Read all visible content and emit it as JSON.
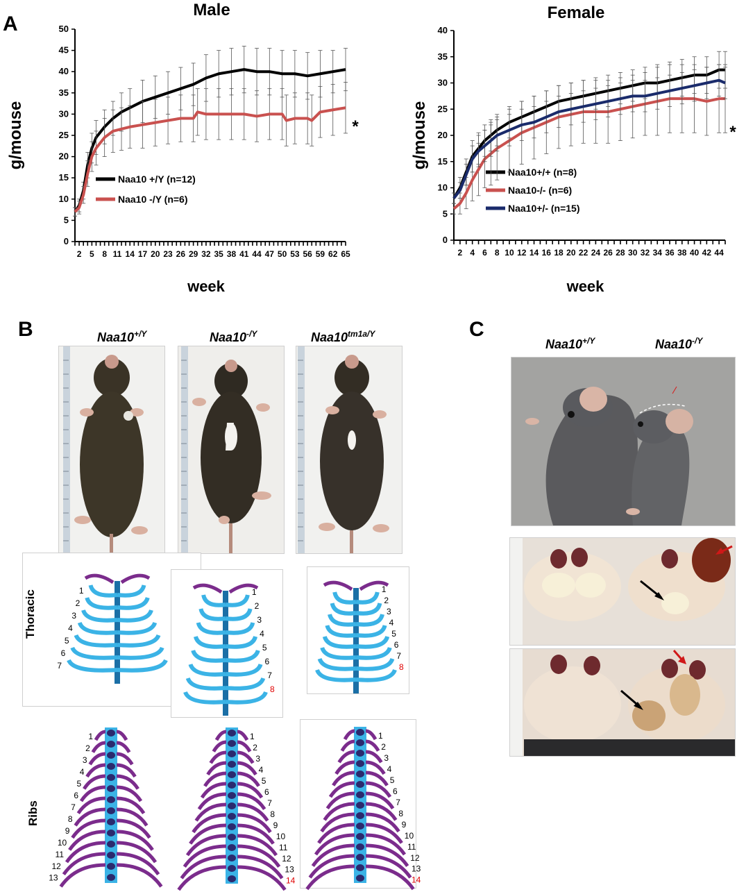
{
  "panels": {
    "a": "A",
    "b": "B",
    "c": "C"
  },
  "colors": {
    "wt": "#000000",
    "ko": "#c9514f",
    "het": "#1a2b6b",
    "bone_blue": "#3bb3e6",
    "bone_purple": "#7b2c8c",
    "red_number": "#e00000"
  },
  "chart_data": [
    {
      "type": "line",
      "title": "Male",
      "xlabel": "week",
      "ylabel": "g/mouse",
      "ylim": [
        0,
        50
      ],
      "yticks": [
        0,
        5,
        10,
        15,
        20,
        25,
        30,
        35,
        40,
        45,
        50
      ],
      "xlim": [
        1,
        65
      ],
      "xticks": [
        "2",
        "5",
        "8",
        "11",
        "14",
        "17",
        "20",
        "23",
        "26",
        "29",
        "32",
        "35",
        "38",
        "41",
        "44",
        "47",
        "50",
        "53",
        "56",
        "59",
        "62",
        "65"
      ],
      "annotation": "*",
      "series": [
        {
          "name": "Naa10 +/Y (n=12)",
          "color": "#000000",
          "x": [
            1,
            2,
            3,
            4,
            5,
            6,
            8,
            10,
            12,
            14,
            17,
            20,
            23,
            26,
            29,
            32,
            35,
            38,
            41,
            44,
            47,
            50,
            53,
            56,
            59,
            62,
            65
          ],
          "y": [
            7,
            8.5,
            12,
            18,
            22,
            24.5,
            27,
            29,
            30.5,
            31.5,
            33,
            34,
            35,
            36,
            37,
            38.5,
            39.5,
            40,
            40.5,
            40,
            40,
            39.5,
            39.5,
            39,
            39.5,
            40,
            40.5
          ],
          "err": [
            1,
            1.5,
            2,
            3,
            3.5,
            4,
            4,
            4,
            4.5,
            4.5,
            5,
            5,
            5,
            5,
            5,
            5.5,
            5.5,
            5.5,
            5.5,
            5.5,
            5.5,
            5.5,
            5.5,
            5.5,
            5.5,
            5,
            5
          ]
        },
        {
          "name": "Naa10 -/Y (n=6)",
          "color": "#c9514f",
          "x": [
            1,
            2,
            3,
            4,
            5,
            6,
            8,
            10,
            12,
            14,
            17,
            20,
            23,
            26,
            29,
            30,
            32,
            35,
            38,
            41,
            44,
            47,
            50,
            51,
            53,
            56,
            57,
            59,
            62,
            65
          ],
          "y": [
            7,
            8,
            11,
            16,
            20,
            22,
            24.5,
            26,
            26.5,
            27,
            27.5,
            28,
            28.5,
            29,
            29,
            30.5,
            30,
            30,
            30,
            30,
            29.5,
            30,
            30,
            28.5,
            29,
            29,
            28.5,
            30.5,
            31,
            31.5
          ],
          "err": [
            1,
            1.5,
            2,
            3,
            3.5,
            4,
            4.5,
            5,
            5,
            5,
            5.5,
            5.5,
            5.5,
            5.5,
            5.5,
            5.5,
            6,
            6,
            6,
            6,
            6,
            6,
            6,
            6,
            6,
            6,
            6,
            6,
            6,
            6
          ]
        }
      ]
    },
    {
      "type": "line",
      "title": "Female",
      "xlabel": "week",
      "ylabel": "g/mouse",
      "ylim": [
        0,
        40
      ],
      "yticks": [
        0,
        5,
        10,
        15,
        20,
        25,
        30,
        35,
        40
      ],
      "xlim": [
        1,
        45
      ],
      "xticks": [
        "2",
        "4",
        "6",
        "8",
        "10",
        "12",
        "14",
        "16",
        "18",
        "20",
        "22",
        "24",
        "26",
        "28",
        "30",
        "32",
        "34",
        "36",
        "38",
        "40",
        "42",
        "44"
      ],
      "annotation": "*",
      "series": [
        {
          "name": "Naa10+/+ (n=8)",
          "color": "#000000",
          "x": [
            1,
            2,
            3,
            4,
            5,
            6,
            7,
            8,
            10,
            12,
            14,
            16,
            18,
            20,
            22,
            24,
            26,
            28,
            30,
            32,
            34,
            36,
            38,
            40,
            42,
            44,
            45
          ],
          "y": [
            8,
            10,
            13,
            16,
            17.5,
            19,
            20,
            21,
            22.5,
            23.5,
            24.5,
            25.5,
            26.5,
            27,
            27.5,
            28,
            28.5,
            29,
            29.5,
            30,
            30,
            30.5,
            31,
            31.5,
            31.5,
            32.5,
            32.5
          ],
          "err": [
            1,
            2,
            2.5,
            3,
            3,
            3,
            3,
            3,
            3,
            3,
            3,
            3,
            3,
            3,
            3,
            3,
            3,
            3,
            3,
            3,
            3.5,
            3.5,
            3.5,
            3.5,
            3.5,
            3.5,
            3.5
          ]
        },
        {
          "name": "Naa10-/- (n=6)",
          "color": "#c9514f",
          "x": [
            1,
            2,
            3,
            4,
            5,
            6,
            7,
            8,
            10,
            12,
            14,
            16,
            18,
            20,
            22,
            24,
            26,
            28,
            30,
            32,
            34,
            36,
            38,
            40,
            42,
            44,
            45
          ],
          "y": [
            6,
            7,
            9,
            11.5,
            13.5,
            15.5,
            16.5,
            17.5,
            19,
            20.5,
            21.5,
            22.5,
            23.5,
            24,
            24.5,
            24.5,
            24.5,
            25,
            25.5,
            26,
            26.5,
            27,
            27,
            27,
            26.5,
            27,
            27
          ],
          "err": [
            1,
            2,
            3,
            4,
            5,
            5.5,
            6,
            6,
            6,
            6,
            6,
            6,
            6,
            6,
            6,
            6,
            6,
            6,
            6,
            6,
            6.5,
            6.5,
            6.5,
            6.5,
            6.5,
            6.5,
            6.5
          ]
        },
        {
          "name": "Naa10+/- (n=15)",
          "color": "#1a2b6b",
          "x": [
            1,
            2,
            3,
            4,
            5,
            6,
            7,
            8,
            10,
            12,
            14,
            16,
            18,
            20,
            22,
            24,
            26,
            28,
            30,
            32,
            34,
            36,
            38,
            40,
            42,
            44,
            45
          ],
          "y": [
            8,
            9.5,
            12.5,
            15.5,
            17,
            18,
            19,
            20,
            21,
            22,
            22.5,
            23.5,
            24.5,
            25,
            25.5,
            26,
            26.5,
            27,
            27.5,
            27.5,
            28,
            28.5,
            29,
            29.5,
            30,
            30.5,
            30
          ],
          "err": [
            1,
            1.5,
            2,
            2.5,
            3,
            3,
            3,
            3,
            3,
            3,
            3,
            3,
            3,
            3,
            3,
            3,
            3,
            3,
            3,
            3,
            3,
            3,
            3,
            3,
            3,
            3,
            3
          ]
        }
      ]
    }
  ],
  "panel_b": {
    "genotypes": [
      {
        "base": "Naa10",
        "sup": "+/Y"
      },
      {
        "base": "Naa10",
        "sup": "-/Y"
      },
      {
        "base": "Naa10",
        "sup": "tm1a/Y"
      }
    ],
    "row_labels": {
      "thoracic": "Thoracic",
      "ribs": "Ribs"
    },
    "thoracic_counts": [
      7,
      8,
      8
    ],
    "rib_counts": [
      13,
      14,
      14
    ]
  },
  "panel_c": {
    "genotypes": [
      {
        "base": "Naa10",
        "sup": "+/Y"
      },
      {
        "base": "Naa10",
        "sup": "-/Y"
      }
    ]
  }
}
